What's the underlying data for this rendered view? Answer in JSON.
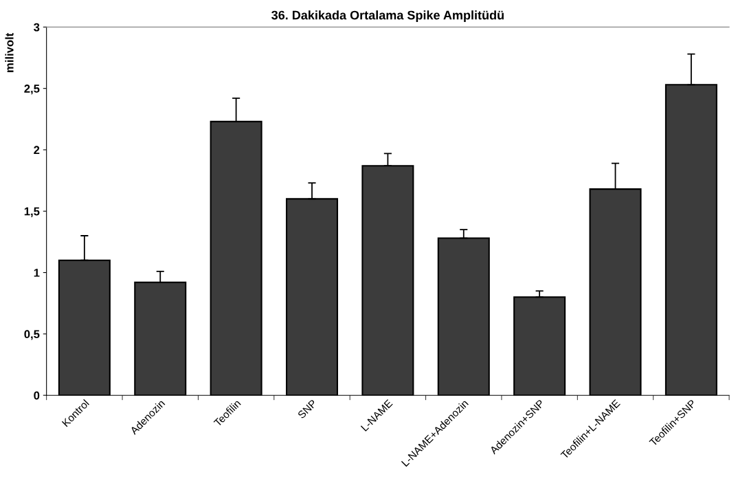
{
  "chart_data": {
    "type": "bar",
    "title": "36. Dakikada Ortalama Spike Amplitüdü",
    "ylabel": "milivolt",
    "categories": [
      "Kontrol",
      "Adenozin",
      "Teofilin",
      "SNP",
      "L-NAME",
      "L-NAME+Adenozin",
      "Adenozin+SNP",
      "Teofilin+L-NAME",
      "Teofilin+SNP"
    ],
    "values": [
      1.1,
      0.92,
      2.23,
      1.6,
      1.87,
      1.28,
      0.8,
      1.68,
      2.53
    ],
    "errors": [
      [
        1.1,
        1.3
      ],
      [
        0.92,
        1.01
      ],
      [
        2.23,
        2.42
      ],
      [
        1.6,
        1.73
      ],
      [
        1.87,
        1.97
      ],
      [
        1.28,
        1.35
      ],
      [
        0.8,
        0.85
      ],
      [
        1.68,
        1.89
      ],
      [
        2.53,
        2.78
      ]
    ],
    "color": "#3c3c3c",
    "ylim": [
      0,
      3
    ],
    "yticks": [
      0,
      {
        "value": 0.5,
        "label": "0,5"
      },
      1,
      {
        "value": 1.5,
        "label": "1,5"
      },
      2,
      {
        "value": 2.5,
        "label": "2,5"
      },
      3
    ],
    "grid": false,
    "legend": false
  }
}
